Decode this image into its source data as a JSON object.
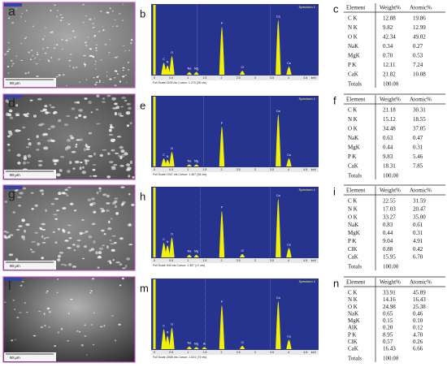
{
  "panels": [
    {
      "image": {
        "label": "a",
        "scale": "90 μm"
      },
      "spectrum": {
        "label": "b",
        "title": "Spectrum 1",
        "footer": "Full Scale 1100 cts Cursor: 1.270 (38 cts)",
        "unit": "keV",
        "ticks": [
          0,
          0.5,
          1,
          1.5,
          2,
          2.5,
          3,
          3.5,
          4,
          4.5
        ],
        "peaks": [
          "C",
          "N",
          "O",
          "Na",
          "Mg",
          "P",
          "Cl",
          "Ca",
          "Ca"
        ]
      },
      "table": {
        "label": "c",
        "header": [
          "Element",
          "Weight%",
          "Atomic%"
        ],
        "rows": [
          [
            "C K",
            "12.88",
            "19.86"
          ],
          [
            "N K",
            "9.82",
            "12.99"
          ],
          [
            "O K",
            "42.34",
            "49.02"
          ],
          [
            "NaK",
            "0.34",
            "0.27"
          ],
          [
            "MgK",
            "0.70",
            "0.53"
          ],
          [
            "P K",
            "12.11",
            "7.24"
          ],
          [
            "CaK",
            "21.82",
            "10.08"
          ]
        ],
        "totals": [
          "Totals",
          "100.00"
        ]
      }
    },
    {
      "image": {
        "label": "d",
        "scale": "90 μm"
      },
      "spectrum": {
        "label": "e",
        "title": "Spectrum 1",
        "footer": "Full Scale 1947 cts Cursor: 1.467 (36 cts)",
        "unit": "keV",
        "ticks": [
          0,
          0.5,
          1,
          1.5,
          2,
          2.5,
          3,
          3.5,
          4,
          4.5
        ],
        "peaks": [
          "C",
          "N",
          "O",
          "Na",
          "Mg",
          "P",
          "Ca",
          "Ca"
        ]
      },
      "table": {
        "label": "f",
        "header": [
          "Element",
          "Weight%",
          "Atomic%"
        ],
        "rows": [
          [
            "C K",
            "21.18",
            "30.31"
          ],
          [
            "N K",
            "15.12",
            "18.55"
          ],
          [
            "O K",
            "34.48",
            "37.05"
          ],
          [
            "NaK",
            "0.63",
            "0.47"
          ],
          [
            "MgK",
            "0.44",
            "0.31"
          ],
          [
            "P K",
            "9.83",
            "5.46"
          ],
          [
            "CaK",
            "18.31",
            "7.85"
          ]
        ],
        "totals": [
          "Totals",
          "100.00"
        ]
      }
    },
    {
      "image": {
        "label": "g",
        "scale": "90 μm"
      },
      "spectrum": {
        "label": "h",
        "title": "Spectrum 1",
        "footer": "Full Scale 940 cts Cursor: 1.367 (17 cts)",
        "unit": "keV",
        "ticks": [
          0,
          0.5,
          1,
          1.5,
          2,
          2.5,
          3,
          3.5,
          4,
          4.5
        ],
        "peaks": [
          "C",
          "N",
          "O",
          "Na",
          "Mg",
          "P",
          "Cl",
          "Ca",
          "Ca"
        ]
      },
      "table": {
        "label": "i",
        "header": [
          "Element",
          "Weight%",
          "Atomic%"
        ],
        "rows": [
          [
            "C K",
            "22.55",
            "31.59"
          ],
          [
            "N K",
            "17.03",
            "20.47"
          ],
          [
            "O K",
            "33.27",
            "35.00"
          ],
          [
            "NaK",
            "0.83",
            "0.61"
          ],
          [
            "MgK",
            "0.44",
            "0.31"
          ],
          [
            "P K",
            "9.04",
            "4.91"
          ],
          [
            "ClK",
            "0.88",
            "0.42"
          ],
          [
            "CaK",
            "15.95",
            "6.70"
          ]
        ],
        "totals": [
          "Totals",
          "100.00"
        ]
      }
    },
    {
      "image": {
        "label": "l",
        "scale": "90 μm"
      },
      "spectrum": {
        "label": "m",
        "title": "Spectrum 2",
        "footer": "Full Scale 2008 cts Cursor: 1.524 (79 cts)",
        "unit": "keV",
        "ticks": [
          0,
          0.5,
          1,
          1.5,
          2,
          2.5,
          3,
          3.5,
          4,
          4.5
        ],
        "peaks": [
          "C",
          "N",
          "O",
          "Na",
          "Mg",
          "Al",
          "P",
          "Cl",
          "Ca",
          "Ca"
        ]
      },
      "table": {
        "label": "n",
        "header": [
          "Element",
          "Weight%",
          "Atomic%"
        ],
        "rows": [
          [
            "C K",
            "33.91",
            "45.89"
          ],
          [
            "N K",
            "14.16",
            "16.43"
          ],
          [
            "O K",
            "24.98",
            "25.38"
          ],
          [
            "NaK",
            "0.65",
            "0.46"
          ],
          [
            "MgK",
            "0.15",
            "0.10"
          ],
          [
            "AlK",
            "0.20",
            "0.12"
          ],
          [
            "P K",
            "8.95",
            "4.70"
          ],
          [
            "ClK",
            "0.57",
            "0.26"
          ],
          [
            "CaK",
            "16.43",
            "6.66"
          ]
        ],
        "totals": [
          "Totals",
          "100.00"
        ]
      }
    }
  ]
}
